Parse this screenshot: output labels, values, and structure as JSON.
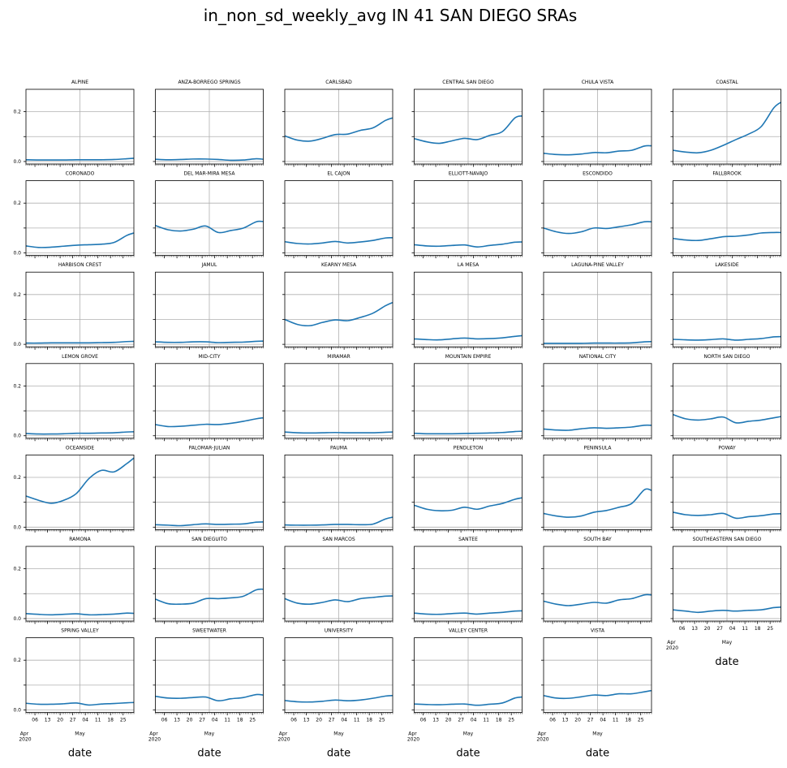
{
  "chart_data": {
    "type": "line",
    "title": "in_non_sd_weekly_avg IN 41 SAN DIEGO SRAs",
    "xlabel": "date",
    "ylabel": "",
    "ylim": [
      -0.01,
      0.29
    ],
    "yticks": [
      {
        "value": 0.0,
        "label": "0.0"
      },
      {
        "value": 0.1,
        "label": ""
      },
      {
        "value": 0.2,
        "label": "0.2"
      }
    ],
    "x_start_label": "Apr",
    "x_start_year": "2020",
    "x_month_label": "May",
    "xticks": [
      "06",
      "13",
      "20",
      "27",
      "04",
      "11",
      "18",
      "25"
    ],
    "grid": true,
    "layout": {
      "columns": 6
    },
    "series_color": "#1f77b4",
    "x": [
      "2020-04-01",
      "2020-04-08",
      "2020-04-15",
      "2020-04-22",
      "2020-04-29",
      "2020-05-06",
      "2020-05-13",
      "2020-05-20",
      "2020-05-27",
      "2020-05-31"
    ],
    "panels": [
      {
        "name": "ALPINE",
        "values": [
          0.007,
          0.006,
          0.006,
          0.006,
          0.007,
          0.007,
          0.007,
          0.008,
          0.011,
          0.013
        ]
      },
      {
        "name": "ANZA-BORREGO SPRINGS",
        "values": [
          0.009,
          0.007,
          0.008,
          0.01,
          0.01,
          0.008,
          0.005,
          0.006,
          0.011,
          0.009
        ]
      },
      {
        "name": "CARLSBAD",
        "values": [
          0.103,
          0.086,
          0.082,
          0.093,
          0.108,
          0.11,
          0.125,
          0.135,
          0.165,
          0.175
        ]
      },
      {
        "name": "CENTRAL SAN DIEGO",
        "values": [
          0.092,
          0.079,
          0.073,
          0.083,
          0.093,
          0.088,
          0.105,
          0.12,
          0.175,
          0.183
        ]
      },
      {
        "name": "CHULA VISTA",
        "values": [
          0.033,
          0.028,
          0.027,
          0.03,
          0.036,
          0.035,
          0.042,
          0.045,
          0.062,
          0.063
        ]
      },
      {
        "name": "COASTAL",
        "values": [
          0.045,
          0.038,
          0.035,
          0.045,
          0.065,
          0.088,
          0.11,
          0.14,
          0.215,
          0.238
        ]
      },
      {
        "name": "CORONADO",
        "values": [
          0.028,
          0.022,
          0.023,
          0.027,
          0.031,
          0.033,
          0.035,
          0.042,
          0.07,
          0.08
        ]
      },
      {
        "name": "DEL MAR-MIRA MESA",
        "values": [
          0.11,
          0.093,
          0.088,
          0.095,
          0.108,
          0.082,
          0.09,
          0.1,
          0.125,
          0.126
        ]
      },
      {
        "name": "EL CAJON",
        "values": [
          0.045,
          0.038,
          0.036,
          0.04,
          0.046,
          0.04,
          0.044,
          0.05,
          0.06,
          0.061
        ]
      },
      {
        "name": "ELLIOTT-NAVAJO",
        "values": [
          0.033,
          0.028,
          0.027,
          0.03,
          0.032,
          0.024,
          0.03,
          0.035,
          0.043,
          0.044
        ]
      },
      {
        "name": "ESCONDIDO",
        "values": [
          0.1,
          0.085,
          0.078,
          0.085,
          0.1,
          0.098,
          0.105,
          0.113,
          0.125,
          0.125
        ]
      },
      {
        "name": "FALLBROOK",
        "values": [
          0.058,
          0.052,
          0.05,
          0.057,
          0.065,
          0.067,
          0.072,
          0.08,
          0.082,
          0.082
        ]
      },
      {
        "name": "HARBISON CREST",
        "values": [
          0.005,
          0.005,
          0.006,
          0.006,
          0.006,
          0.006,
          0.007,
          0.008,
          0.011,
          0.012
        ]
      },
      {
        "name": "JAMUL",
        "values": [
          0.01,
          0.008,
          0.008,
          0.01,
          0.01,
          0.007,
          0.008,
          0.009,
          0.012,
          0.013
        ]
      },
      {
        "name": "KEARNY MESA",
        "values": [
          0.1,
          0.08,
          0.075,
          0.088,
          0.098,
          0.095,
          0.108,
          0.125,
          0.155,
          0.168
        ]
      },
      {
        "name": "LA MESA",
        "values": [
          0.022,
          0.019,
          0.018,
          0.022,
          0.025,
          0.022,
          0.023,
          0.026,
          0.032,
          0.035
        ]
      },
      {
        "name": "LAGUNA-PINE VALLEY",
        "values": [
          0.004,
          0.004,
          0.004,
          0.004,
          0.005,
          0.005,
          0.005,
          0.006,
          0.01,
          0.011
        ]
      },
      {
        "name": "LAKESIDE",
        "values": [
          0.02,
          0.018,
          0.017,
          0.019,
          0.022,
          0.017,
          0.02,
          0.023,
          0.03,
          0.031
        ]
      },
      {
        "name": "LEMON GROVE",
        "values": [
          0.009,
          0.007,
          0.007,
          0.008,
          0.01,
          0.01,
          0.011,
          0.012,
          0.015,
          0.016
        ]
      },
      {
        "name": "MID-CITY",
        "values": [
          0.045,
          0.037,
          0.038,
          0.042,
          0.046,
          0.045,
          0.05,
          0.058,
          0.068,
          0.072
        ]
      },
      {
        "name": "MIRAMAR",
        "values": [
          0.015,
          0.012,
          0.011,
          0.012,
          0.013,
          0.012,
          0.012,
          0.012,
          0.014,
          0.015
        ]
      },
      {
        "name": "MOUNTAIN EMPIRE",
        "values": [
          0.01,
          0.008,
          0.008,
          0.008,
          0.009,
          0.01,
          0.011,
          0.013,
          0.017,
          0.018
        ]
      },
      {
        "name": "NATIONAL CITY",
        "values": [
          0.027,
          0.023,
          0.022,
          0.028,
          0.032,
          0.03,
          0.032,
          0.035,
          0.042,
          0.042
        ]
      },
      {
        "name": "NORTH SAN DIEGO",
        "values": [
          0.085,
          0.068,
          0.063,
          0.068,
          0.075,
          0.052,
          0.058,
          0.063,
          0.072,
          0.077
        ]
      },
      {
        "name": "OCEANSIDE",
        "values": [
          0.125,
          0.108,
          0.096,
          0.108,
          0.135,
          0.195,
          0.228,
          0.222,
          0.255,
          0.278
        ]
      },
      {
        "name": "PALOMAR-JULIAN",
        "values": [
          0.01,
          0.008,
          0.006,
          0.01,
          0.013,
          0.011,
          0.012,
          0.013,
          0.02,
          0.021
        ]
      },
      {
        "name": "PAUMA",
        "values": [
          0.009,
          0.008,
          0.008,
          0.009,
          0.011,
          0.011,
          0.01,
          0.012,
          0.033,
          0.04
        ]
      },
      {
        "name": "PENDLETON",
        "values": [
          0.088,
          0.072,
          0.066,
          0.068,
          0.08,
          0.072,
          0.085,
          0.095,
          0.112,
          0.118
        ]
      },
      {
        "name": "PENINSULA",
        "values": [
          0.055,
          0.045,
          0.04,
          0.045,
          0.06,
          0.067,
          0.08,
          0.095,
          0.15,
          0.148
        ]
      },
      {
        "name": "POWAY",
        "values": [
          0.06,
          0.05,
          0.047,
          0.05,
          0.055,
          0.036,
          0.042,
          0.046,
          0.053,
          0.054
        ]
      },
      {
        "name": "RAMONA",
        "values": [
          0.02,
          0.017,
          0.015,
          0.017,
          0.019,
          0.015,
          0.016,
          0.018,
          0.022,
          0.021
        ]
      },
      {
        "name": "SAN DIEGUITO",
        "values": [
          0.078,
          0.06,
          0.058,
          0.062,
          0.08,
          0.08,
          0.083,
          0.09,
          0.115,
          0.118
        ]
      },
      {
        "name": "SAN MARCOS",
        "values": [
          0.08,
          0.062,
          0.058,
          0.065,
          0.075,
          0.068,
          0.08,
          0.085,
          0.09,
          0.091
        ]
      },
      {
        "name": "SANTEE",
        "values": [
          0.022,
          0.018,
          0.017,
          0.02,
          0.022,
          0.018,
          0.022,
          0.025,
          0.03,
          0.031
        ]
      },
      {
        "name": "SOUTH BAY",
        "values": [
          0.07,
          0.058,
          0.052,
          0.058,
          0.065,
          0.062,
          0.075,
          0.08,
          0.095,
          0.095
        ]
      },
      {
        "name": "SOUTHEASTERN SAN DIEGO",
        "values": [
          0.035,
          0.03,
          0.025,
          0.03,
          0.033,
          0.03,
          0.033,
          0.035,
          0.044,
          0.046
        ]
      },
      {
        "name": "SPRING VALLEY",
        "values": [
          0.027,
          0.023,
          0.023,
          0.025,
          0.028,
          0.02,
          0.024,
          0.026,
          0.029,
          0.03
        ]
      },
      {
        "name": "SWEETWATER",
        "values": [
          0.055,
          0.048,
          0.047,
          0.05,
          0.052,
          0.037,
          0.045,
          0.05,
          0.062,
          0.06
        ]
      },
      {
        "name": "UNIVERSITY",
        "values": [
          0.038,
          0.033,
          0.032,
          0.035,
          0.04,
          0.037,
          0.04,
          0.047,
          0.056,
          0.058
        ]
      },
      {
        "name": "VALLEY CENTER",
        "values": [
          0.024,
          0.022,
          0.021,
          0.023,
          0.024,
          0.019,
          0.023,
          0.028,
          0.048,
          0.052
        ]
      },
      {
        "name": "VISTA",
        "values": [
          0.058,
          0.048,
          0.047,
          0.053,
          0.06,
          0.058,
          0.065,
          0.065,
          0.073,
          0.078
        ]
      }
    ]
  }
}
